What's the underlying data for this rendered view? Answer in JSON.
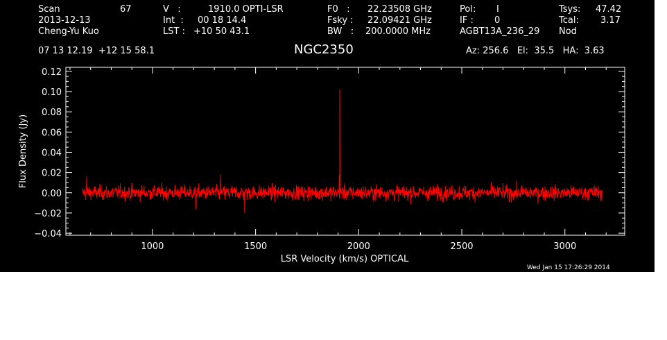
{
  "header": {
    "scan_label": "Scan",
    "scan_value": "67",
    "date": "2013-12-13",
    "observer": "Cheng-Yu Kuo",
    "v_label": "V   :",
    "v_value": "1910.0 OPTI-LSR",
    "int_label": "Int  :",
    "int_value": "00 18 14.4",
    "lst_label": "LST : ",
    "lst_value": "+10 50 43.1",
    "f0_label": "F0   :",
    "f0_value": "22.23508 GHz",
    "fsky_label": "Fsky :",
    "fsky_value": "22.09421 GHz",
    "bw_label": "BW   :",
    "bw_value": "200.0000 MHz",
    "pol_label": "Pol:",
    "pol_value": "I",
    "if_label": "IF :",
    "if_value": "0",
    "project": "AGBT13A_236_29",
    "tsys_label": "Tsys:",
    "tsys_value": "47.42",
    "tcal_label": "Tcal:",
    "tcal_value": "3.17",
    "proc": "Nod",
    "coords": "07 13 12.19  +12 15 58.1",
    "source": "NGC2350",
    "az_el_ha": "Az: 256.6   El:  35.5   HA:  3.63",
    "timestamp": "Wed Jan 15 17:26:29 2014"
  },
  "chart_data": {
    "type": "line",
    "title": "NGC2350",
    "xlabel": "LSR Velocity (km/s) OPTICAL",
    "ylabel": "Flux Density (Jy)",
    "xlim": [
      580,
      3290
    ],
    "ylim": [
      -0.042,
      0.124
    ],
    "x_ticks": [
      1000,
      1500,
      2000,
      2500,
      3000
    ],
    "y_ticks": [
      -0.04,
      -0.02,
      0.0,
      0.02,
      0.04,
      0.06,
      0.08,
      0.1,
      0.12
    ],
    "y_tick_labels": [
      "−0.04",
      "−0.02",
      "0.00",
      "0.02",
      "0.04",
      "0.06",
      "0.08",
      "0.10",
      "0.12"
    ],
    "grid": false,
    "series": [
      {
        "color": "#ff0000",
        "x_start": 660,
        "x_end": 3180,
        "baseline": 0.0,
        "noise_rms": 0.005,
        "peaks": [
          {
            "x": 1908,
            "y": 0.102
          },
          {
            "x": 1906,
            "y": 0.018
          }
        ],
        "spikes": [
          {
            "x": 1447,
            "y": -0.02
          },
          {
            "x": 1210,
            "y": -0.016
          },
          {
            "x": 681,
            "y": 0.016
          },
          {
            "x": 1328,
            "y": 0.018
          }
        ]
      }
    ]
  }
}
